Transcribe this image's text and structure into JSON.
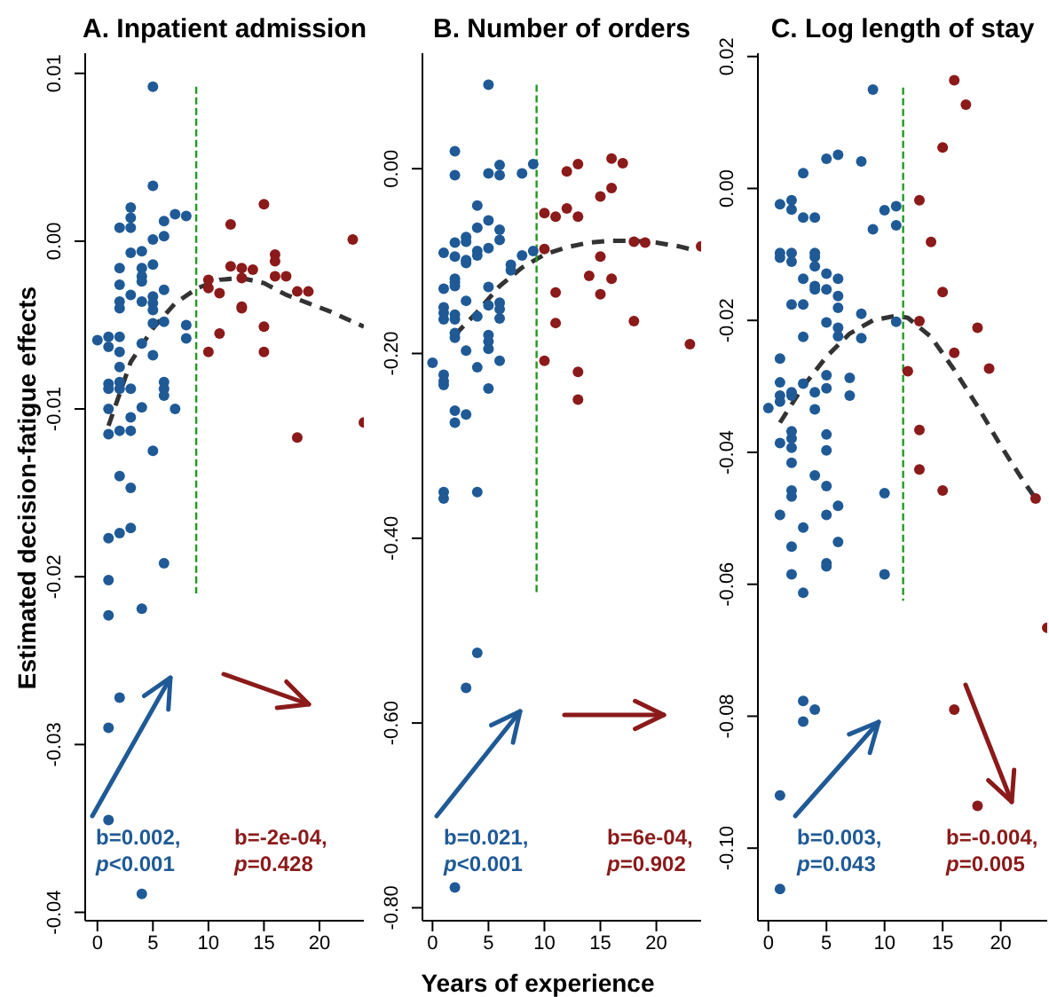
{
  "chart_data": [
    {
      "type": "scatter",
      "title": "A. Inpatient admission",
      "ylabel": "Estimated decision-fatigue effects",
      "xlim": [
        -1.1,
        24
      ],
      "xticks": [
        0,
        5,
        10,
        15,
        20
      ],
      "ylim": [
        -0.0405,
        0.0112
      ],
      "yticks": [
        {
          "value": 0.01,
          "label": "0.01"
        },
        {
          "value": 0,
          "label": "0.00"
        },
        {
          "value": -0.01,
          "label": "-0.01"
        },
        {
          "value": -0.02,
          "label": "-0.02"
        },
        {
          "value": -0.03,
          "label": "-0.03"
        },
        {
          "value": -0.04,
          "label": "-0.04"
        }
      ],
      "annotations": [
        "b=0.002,",
        "p<0.001",
        "b=-2e-04,",
        "p=0.428"
      ],
      "series": [
        {
          "marker": "circle",
          "color": "#1f5a96",
          "x": [
            5,
            5,
            3,
            3,
            3,
            2,
            3,
            4,
            5,
            6,
            6,
            7,
            8,
            2,
            2,
            2,
            2,
            3,
            4,
            4,
            4,
            4,
            5,
            5,
            5,
            5,
            5,
            5,
            6,
            6,
            8,
            8,
            0,
            1,
            1,
            1,
            1,
            1,
            1,
            1,
            1,
            1,
            1,
            1,
            2,
            2,
            2,
            2,
            2,
            2,
            2,
            2,
            2,
            3,
            3,
            3,
            3,
            3,
            4,
            4,
            4,
            5,
            4,
            6,
            6,
            6,
            6,
            7
          ],
          "values": [
            0.0092,
            0.0033,
            0.002,
            0.0014,
            0.0008,
            0.0008,
            -0.0007,
            -0.0006,
            0.0001,
            0.0003,
            0.0012,
            0.0016,
            0.0015,
            -0.0016,
            -0.0026,
            -0.0036,
            -0.004,
            -0.0032,
            -0.0016,
            -0.0021,
            -0.0024,
            -0.0036,
            -0.0014,
            -0.0033,
            -0.0037,
            -0.0041,
            -0.0049,
            -0.0068,
            -0.0029,
            -0.0048,
            -0.005,
            -0.0058,
            -0.0059,
            -0.0057,
            -0.0063,
            -0.0085,
            -0.0088,
            -0.01,
            -0.0115,
            -0.0177,
            -0.0202,
            -0.0223,
            -0.029,
            -0.0345,
            -0.0057,
            -0.0066,
            -0.0075,
            -0.0084,
            -0.0088,
            -0.0113,
            -0.014,
            -0.0174,
            -0.0272,
            -0.0088,
            -0.0105,
            -0.0113,
            -0.0147,
            -0.0171,
            -0.0061,
            -0.0099,
            -0.0219,
            -0.0125,
            -0.0389,
            -0.0084,
            -0.0088,
            -0.0092,
            -0.0192,
            -0.01
          ]
        },
        {
          "marker": "circle",
          "color": "#8b1a1a",
          "x": [
            15,
            12,
            23,
            12,
            13,
            14,
            13,
            16,
            16,
            16,
            17,
            10,
            10,
            11,
            18,
            19,
            13,
            13,
            15,
            15,
            11,
            10,
            18,
            24
          ],
          "values": [
            0.0022,
            0.001,
            0.0001,
            -0.0015,
            -0.0016,
            -0.0017,
            -0.0022,
            -0.0008,
            -0.0012,
            -0.0021,
            -0.0021,
            -0.0023,
            -0.0028,
            -0.0031,
            -0.003,
            -0.003,
            -0.0039,
            -0.004,
            -0.0051,
            -0.0066,
            -0.0055,
            -0.0066,
            -0.0117,
            -0.0108
          ]
        },
        {
          "type": "line",
          "marker": "none",
          "line_style": "dashed",
          "color": "#333333",
          "x": [
            1,
            3,
            5,
            7,
            9,
            11,
            13,
            15,
            17,
            19,
            21,
            23,
            24
          ],
          "values": [
            -0.011,
            -0.0072,
            -0.0052,
            -0.0037,
            -0.0028,
            -0.0023,
            -0.0022,
            -0.0025,
            -0.0032,
            -0.0037,
            -0.0042,
            -0.0048,
            -0.0051
          ]
        },
        {
          "type": "line",
          "marker": "none",
          "line_style": "dashed",
          "color": "#229922",
          "x": [
            8.9,
            8.9
          ],
          "values": [
            0.0092,
            -0.021
          ]
        }
      ]
    },
    {
      "type": "scatter",
      "title": "B. Number of orders",
      "xlabel": "Years of experience",
      "xlim": [
        -0.9,
        24
      ],
      "xticks": [
        0,
        5,
        10,
        15,
        20
      ],
      "ylim": [
        -0.814,
        0.125
      ],
      "yticks": [
        {
          "value": 0,
          "label": "0.00"
        },
        {
          "value": -0.2,
          "label": "-0.20"
        },
        {
          "value": -0.4,
          "label": "-0.40"
        },
        {
          "value": -0.6,
          "label": "-0.60"
        },
        {
          "value": -0.8,
          "label": "-0.80"
        }
      ],
      "annotations": [
        "b=0.021,",
        "p<0.001",
        "b=6e-04,",
        "p=0.902"
      ],
      "series": [
        {
          "marker": "circle",
          "color": "#1f5a96",
          "x": [
            5,
            2,
            2,
            5,
            6,
            6,
            8,
            9,
            4,
            5,
            5,
            4,
            4,
            4,
            6,
            6,
            3,
            3,
            3,
            3,
            3,
            3,
            2,
            2,
            2,
            2,
            2,
            2,
            2,
            2,
            2,
            2,
            2,
            2,
            1,
            1,
            1,
            1,
            1,
            1,
            1,
            1,
            1,
            1,
            0,
            4,
            4,
            4,
            5,
            5,
            5,
            5,
            5,
            5,
            6,
            6,
            6,
            6,
            7,
            7,
            8,
            9,
            3,
            4,
            3
          ],
          "values": [
            0.091,
            0.019,
            -0.007,
            -0.005,
            0.004,
            -0.007,
            -0.005,
            0.005,
            -0.04,
            -0.056,
            -0.086,
            -0.064,
            -0.089,
            -0.094,
            -0.066,
            -0.077,
            -0.074,
            -0.079,
            -0.099,
            -0.102,
            -0.143,
            -0.197,
            -0.08,
            -0.095,
            -0.119,
            -0.123,
            -0.127,
            -0.158,
            -0.163,
            -0.178,
            -0.183,
            -0.262,
            -0.275,
            -0.778,
            -0.091,
            -0.13,
            -0.15,
            -0.156,
            -0.163,
            -0.223,
            -0.23,
            -0.234,
            -0.35,
            -0.357,
            -0.21,
            -0.16,
            -0.215,
            -0.35,
            -0.128,
            -0.148,
            -0.18,
            -0.187,
            -0.195,
            -0.238,
            -0.145,
            -0.152,
            -0.162,
            -0.208,
            -0.104,
            -0.11,
            -0.094,
            -0.089,
            -0.266,
            -0.524,
            -0.562
          ]
        },
        {
          "marker": "circle",
          "color": "#8b1a1a",
          "x": [
            12,
            13,
            16,
            17,
            10,
            11,
            12,
            13,
            15,
            16,
            10,
            18,
            19,
            24,
            15,
            14,
            16,
            11,
            15,
            11,
            18,
            23,
            10,
            13,
            13
          ],
          "values": [
            -0.003,
            0.005,
            0.011,
            0.006,
            -0.048,
            -0.052,
            -0.043,
            -0.052,
            -0.03,
            -0.021,
            -0.087,
            -0.079,
            -0.08,
            -0.084,
            -0.095,
            -0.116,
            -0.119,
            -0.134,
            -0.136,
            -0.167,
            -0.165,
            -0.19,
            -0.208,
            -0.22,
            -0.25
          ]
        },
        {
          "type": "line",
          "marker": "none",
          "line_style": "dashed",
          "color": "#333333",
          "x": [
            2,
            4,
            6,
            8,
            10,
            12,
            14,
            16,
            18,
            20,
            22,
            23
          ],
          "values": [
            -0.18,
            -0.155,
            -0.127,
            -0.107,
            -0.093,
            -0.085,
            -0.08,
            -0.078,
            -0.078,
            -0.08,
            -0.084,
            -0.087
          ]
        },
        {
          "type": "line",
          "marker": "none",
          "line_style": "dashed",
          "color": "#229922",
          "x": [
            9.3,
            9.3
          ],
          "values": [
            0.091,
            -0.46
          ]
        }
      ]
    },
    {
      "type": "scatter",
      "title": "C. Log length of stay",
      "xlim": [
        -0.9,
        24
      ],
      "xticks": [
        0,
        5,
        10,
        15,
        20
      ],
      "ylim": [
        -0.111,
        0.0205
      ],
      "yticks": [
        {
          "value": 0.02,
          "label": "0.02"
        },
        {
          "value": 0,
          "label": "0.00"
        },
        {
          "value": -0.02,
          "label": "-0.02"
        },
        {
          "value": -0.04,
          "label": "-0.04"
        },
        {
          "value": -0.06,
          "label": "-0.06"
        },
        {
          "value": -0.08,
          "label": "-0.08"
        },
        {
          "value": -0.1,
          "label": "-0.10"
        }
      ],
      "annotations": [
        "b=0.003,",
        "p=0.043",
        "b=-0.004,",
        "p=0.005"
      ],
      "series": [
        {
          "marker": "circle",
          "color": "#1f5a96",
          "x": [
            9,
            3,
            5,
            6,
            8,
            1,
            2,
            2,
            3,
            4,
            9,
            10,
            11,
            11,
            1,
            1,
            2,
            2,
            4,
            4,
            4,
            3,
            4,
            4,
            5,
            5,
            6,
            6,
            6,
            2,
            3,
            5,
            6,
            6,
            8,
            8,
            11,
            3,
            1,
            1,
            1,
            1,
            2,
            2,
            3,
            4,
            4,
            0,
            5,
            5,
            7,
            7,
            1,
            2,
            2,
            2,
            2,
            2,
            2,
            2,
            2,
            5,
            5,
            5,
            5,
            5,
            5,
            4,
            6,
            6,
            1,
            3,
            3,
            10,
            10,
            3,
            4,
            3,
            1,
            1
          ],
          "values": [
            0.015,
            0.0023,
            0.0045,
            0.0051,
            0.0041,
            -0.0024,
            -0.0018,
            -0.0032,
            -0.0044,
            -0.0044,
            -0.0062,
            -0.0033,
            -0.0027,
            -0.0056,
            -0.0098,
            -0.0105,
            -0.0098,
            -0.0111,
            -0.0098,
            -0.0104,
            -0.0118,
            -0.0137,
            -0.0148,
            -0.0153,
            -0.0129,
            -0.0153,
            -0.0137,
            -0.0163,
            -0.0181,
            -0.0176,
            -0.0176,
            -0.0203,
            -0.0211,
            -0.0224,
            -0.019,
            -0.0227,
            -0.0202,
            -0.0225,
            -0.0258,
            -0.0294,
            -0.0314,
            -0.0323,
            -0.0309,
            -0.0314,
            -0.0296,
            -0.0309,
            -0.0335,
            -0.0333,
            -0.0283,
            -0.0303,
            -0.0287,
            -0.0314,
            -0.0386,
            -0.0368,
            -0.0379,
            -0.0393,
            -0.0416,
            -0.0458,
            -0.0467,
            -0.0543,
            -0.0585,
            -0.0373,
            -0.0397,
            -0.0451,
            -0.0495,
            -0.0568,
            -0.0573,
            -0.0435,
            -0.0481,
            -0.0536,
            -0.0495,
            -0.0514,
            -0.0613,
            -0.0462,
            -0.0585,
            -0.0777,
            -0.079,
            -0.0808,
            -0.092,
            -0.1062
          ]
        },
        {
          "marker": "circle",
          "color": "#8b1a1a",
          "x": [
            16,
            17,
            15,
            13,
            14,
            15,
            13,
            18,
            16,
            19,
            12,
            13,
            13,
            15,
            23,
            24,
            16,
            18
          ],
          "values": [
            0.0164,
            0.0127,
            0.0062,
            -0.0018,
            -0.0081,
            -0.0157,
            -0.0201,
            -0.0211,
            -0.0249,
            -0.0273,
            -0.0277,
            -0.0366,
            -0.0426,
            -0.0458,
            -0.047,
            -0.0666,
            -0.079,
            -0.0936
          ]
        },
        {
          "type": "line",
          "marker": "none",
          "line_style": "dashed",
          "color": "#333333",
          "x": [
            1,
            3,
            5,
            7,
            9,
            11,
            12,
            14,
            16,
            18,
            20,
            22,
            23
          ],
          "values": [
            -0.0355,
            -0.03,
            -0.0255,
            -0.022,
            -0.02,
            -0.0193,
            -0.0196,
            -0.0225,
            -0.0275,
            -0.033,
            -0.039,
            -0.0445,
            -0.047
          ]
        },
        {
          "type": "line",
          "marker": "none",
          "line_style": "dashed",
          "color": "#229922",
          "x": [
            11.6,
            11.6
          ],
          "values": [
            0.0153,
            -0.0625
          ]
        }
      ]
    }
  ]
}
